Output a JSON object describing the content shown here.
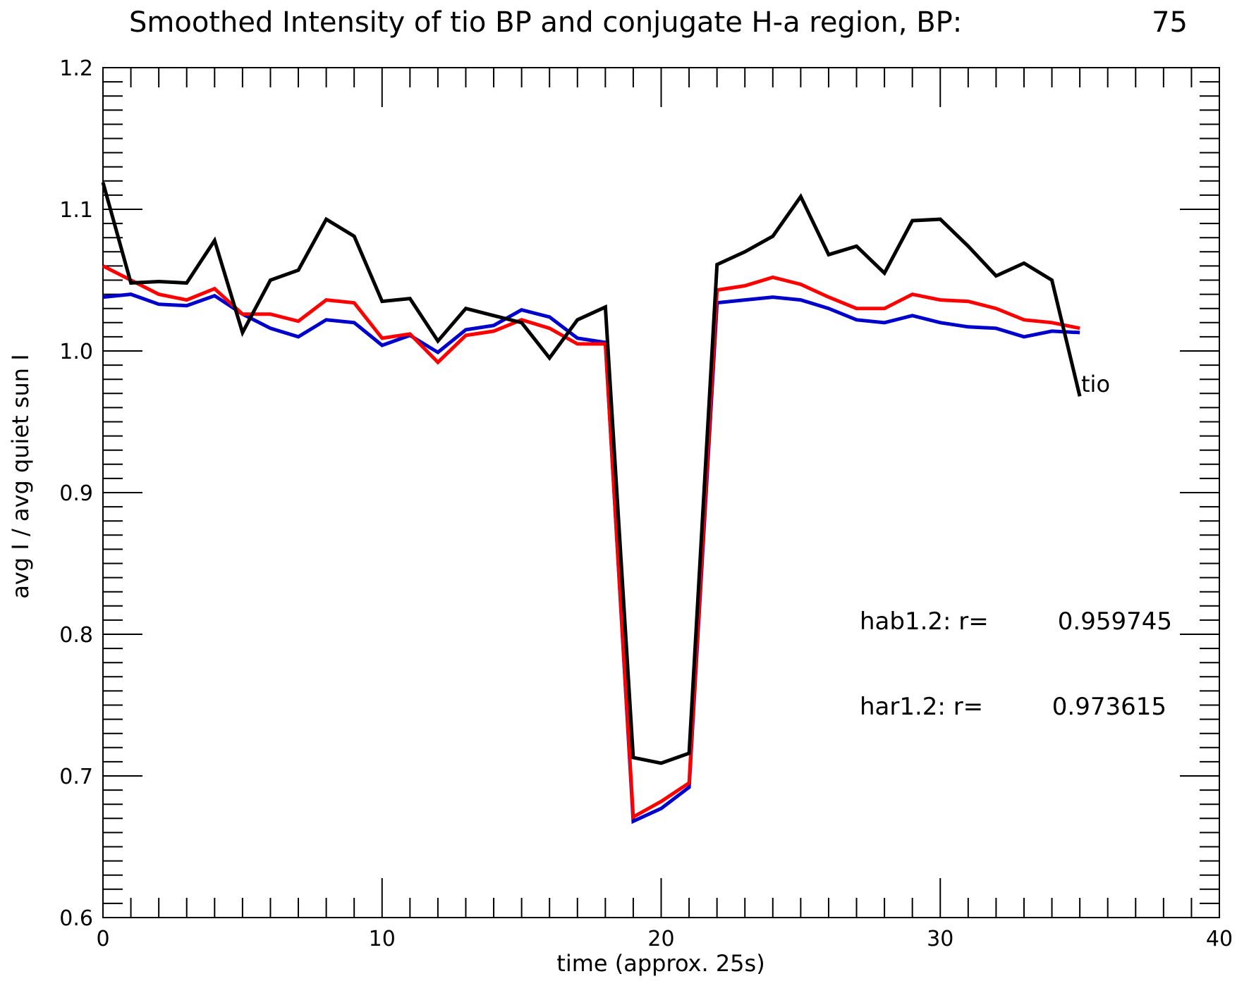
{
  "chart_data": {
    "type": "line",
    "title": "Smoothed Intensity of tio BP and conjugate H-a region, BP:",
    "title_value": "75",
    "xlabel": "time (approx. 25s)",
    "ylabel": "avg I / avg quiet sun I",
    "xlim": [
      0,
      40
    ],
    "ylim": [
      0.6,
      1.2
    ],
    "x_ticks": [
      0,
      10,
      20,
      30,
      40
    ],
    "x_tick_labels": [
      "0",
      "10",
      "20",
      "30",
      "40"
    ],
    "y_ticks": [
      0.6,
      0.7,
      0.8,
      0.9,
      1.0,
      1.1,
      1.2
    ],
    "y_tick_labels": [
      "0.6",
      "0.7",
      "0.8",
      "0.9",
      "1.0",
      "1.1",
      "1.2"
    ],
    "x_minor_step": 1,
    "y_minor_step": 0.01,
    "grid": false,
    "x": [
      0,
      1,
      2,
      3,
      4,
      5,
      6,
      7,
      8,
      9,
      10,
      11,
      12,
      13,
      14,
      15,
      16,
      17,
      18,
      19,
      20,
      21,
      22,
      23,
      24,
      25,
      26,
      27,
      28,
      29,
      30,
      31,
      32,
      33,
      34,
      35
    ],
    "series": [
      {
        "name": "tio",
        "color": "#000000",
        "values": [
          1.119,
          1.048,
          1.049,
          1.048,
          1.078,
          1.013,
          1.05,
          1.057,
          1.093,
          1.081,
          1.035,
          1.037,
          1.007,
          1.03,
          1.025,
          1.02,
          0.995,
          1.022,
          1.031,
          0.713,
          0.709,
          0.716,
          1.061,
          1.07,
          1.081,
          1.109,
          1.068,
          1.074,
          1.055,
          1.092,
          1.093,
          1.074,
          1.053,
          1.062,
          1.05,
          0.968
        ]
      },
      {
        "key": "hab",
        "color": "#0000cc",
        "values": [
          1.038,
          1.04,
          1.033,
          1.032,
          1.039,
          1.026,
          1.016,
          1.01,
          1.022,
          1.02,
          1.004,
          1.011,
          0.999,
          1.015,
          1.018,
          1.029,
          1.024,
          1.009,
          1.006,
          0.668,
          0.677,
          0.692,
          1.034,
          1.036,
          1.038,
          1.036,
          1.03,
          1.022,
          1.02,
          1.025,
          1.02,
          1.017,
          1.016,
          1.01,
          1.014,
          1.013
        ]
      },
      {
        "key": "har",
        "color": "#ff0000",
        "values": [
          1.06,
          1.05,
          1.04,
          1.036,
          1.044,
          1.026,
          1.026,
          1.021,
          1.036,
          1.034,
          1.009,
          1.012,
          0.992,
          1.011,
          1.014,
          1.022,
          1.016,
          1.005,
          1.005,
          0.671,
          0.682,
          0.695,
          1.043,
          1.046,
          1.052,
          1.047,
          1.038,
          1.03,
          1.03,
          1.04,
          1.036,
          1.035,
          1.03,
          1.022,
          1.02,
          1.016
        ]
      }
    ],
    "annotations": [
      {
        "label": "hab1.2: r=",
        "value": "0.959745"
      },
      {
        "label": "har1.2: r=",
        "value": "0.973615"
      }
    ]
  }
}
